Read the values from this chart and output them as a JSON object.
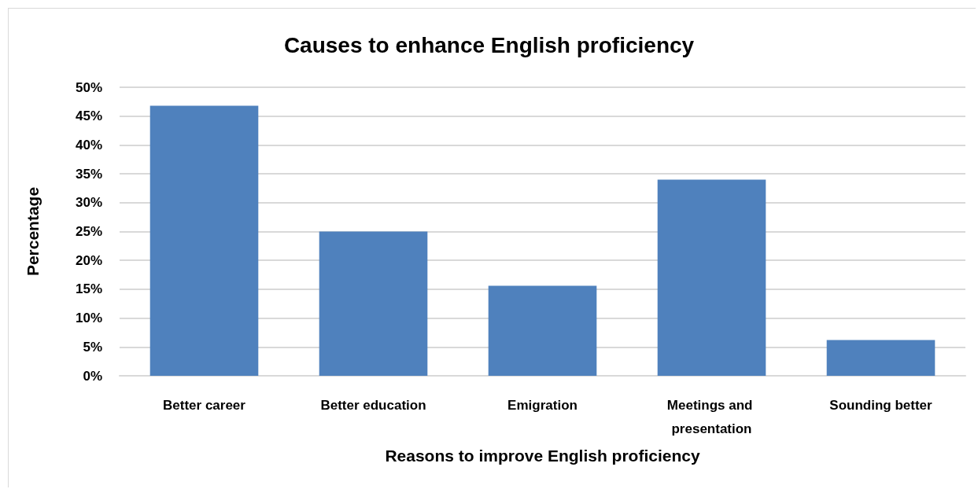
{
  "chart_data": {
    "type": "bar",
    "title": "Causes to enhance English proficiency",
    "xlabel": "Reasons to improve English proficiency",
    "ylabel": "Percentage",
    "categories": [
      "Better career",
      "Better education",
      "Emigration",
      "Meetings and presentation",
      "Sounding better"
    ],
    "values": [
      46.8,
      25,
      15.6,
      34,
      6.2
    ],
    "color": "#4f81bd",
    "ylim": [
      0,
      50
    ],
    "yticks": [
      {
        "value": 0,
        "label": "0%"
      },
      {
        "value": 5,
        "label": "5%"
      },
      {
        "value": 10,
        "label": "10%"
      },
      {
        "value": 15,
        "label": "15%"
      },
      {
        "value": 20,
        "label": "20%"
      },
      {
        "value": 25,
        "label": "25%"
      },
      {
        "value": 30,
        "label": "30%"
      },
      {
        "value": 35,
        "label": "35%"
      },
      {
        "value": 40,
        "label": "40%"
      },
      {
        "value": 45,
        "label": "45%"
      },
      {
        "value": 50,
        "label": "50%"
      }
    ],
    "grid": "y"
  }
}
